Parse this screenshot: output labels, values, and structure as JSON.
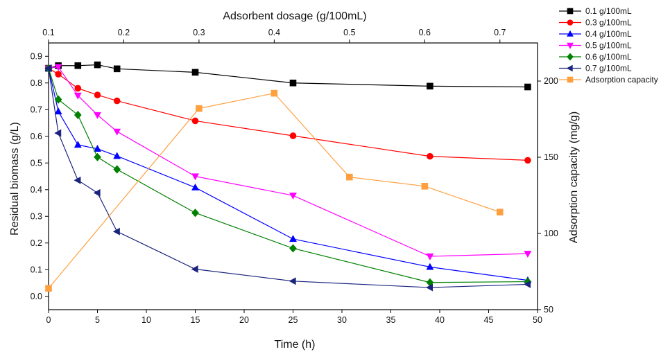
{
  "chart_data": {
    "type": "line",
    "x_bottom": {
      "label": "Time (h)",
      "range": [
        0,
        50
      ],
      "ticks": [
        0,
        5,
        10,
        15,
        20,
        25,
        30,
        35,
        40,
        45,
        50
      ],
      "tick_labels": [
        "0",
        "5",
        "10",
        "15",
        "20",
        "25",
        "30",
        "35",
        "40",
        "45",
        "50"
      ]
    },
    "x_top": {
      "label": "Adsorbent dosage (g/100mL)",
      "range": [
        0.1,
        0.75
      ],
      "ticks": [
        0.1,
        0.2,
        0.3,
        0.4,
        0.5,
        0.6,
        0.7
      ],
      "tick_labels": [
        "0.1",
        "0.2",
        "0.3",
        "0.4",
        "0.5",
        "0.6",
        "0.7"
      ]
    },
    "y_left": {
      "label": "Residual biomass (g/L)",
      "range": [
        -0.05,
        0.95
      ],
      "ticks": [
        0.0,
        0.1,
        0.2,
        0.3,
        0.4,
        0.5,
        0.6,
        0.7,
        0.8,
        0.9
      ],
      "tick_labels": [
        "0.0",
        "0.1",
        "0.2",
        "0.3",
        "0.4",
        "0.5",
        "0.6",
        "0.7",
        "0.8",
        "0.9"
      ]
    },
    "y_right": {
      "label": "Adsorption capacity (mg/g)",
      "range": [
        50,
        225
      ],
      "ticks": [
        50,
        100,
        150,
        200
      ],
      "tick_labels": [
        "50",
        "100",
        "150",
        "200"
      ]
    },
    "legend_position": "outside-top-right",
    "series": [
      {
        "name": "0.1 g/100mL",
        "color": "#000000",
        "marker": "square",
        "axis": "bottom-left",
        "x": [
          0,
          1,
          3,
          5,
          7,
          15,
          25,
          39,
          49
        ],
        "y": [
          0.855,
          0.865,
          0.865,
          0.868,
          0.853,
          0.84,
          0.8,
          0.788,
          0.785
        ]
      },
      {
        "name": "0.3 g/100mL",
        "color": "#ff0000",
        "marker": "circle",
        "axis": "bottom-left",
        "x": [
          0,
          1,
          3,
          5,
          7,
          15,
          25,
          39,
          49
        ],
        "y": [
          0.855,
          0.833,
          0.78,
          0.755,
          0.733,
          0.658,
          0.602,
          0.525,
          0.51
        ]
      },
      {
        "name": "0.4 g/100mL",
        "color": "#0000ff",
        "marker": "triangle-up",
        "axis": "bottom-left",
        "x": [
          0,
          1,
          3,
          5,
          7,
          15,
          25,
          39,
          49
        ],
        "y": [
          0.855,
          0.693,
          0.568,
          0.553,
          0.526,
          0.408,
          0.215,
          0.11,
          0.06
        ]
      },
      {
        "name": "0.5 g/100mL",
        "color": "#ff00ff",
        "marker": "triangle-down",
        "axis": "bottom-left",
        "x": [
          0,
          1,
          3,
          5,
          7,
          15,
          25,
          39,
          49
        ],
        "y": [
          0.855,
          0.86,
          0.753,
          0.68,
          0.618,
          0.45,
          0.378,
          0.15,
          0.16
        ]
      },
      {
        "name": "0.6 g/100mL",
        "color": "#008000",
        "marker": "diamond",
        "axis": "bottom-left",
        "x": [
          0,
          1,
          3,
          5,
          7,
          15,
          25,
          39,
          49
        ],
        "y": [
          0.855,
          0.738,
          0.68,
          0.522,
          0.476,
          0.313,
          0.18,
          0.052,
          0.055
        ]
      },
      {
        "name": "0.7 g/100mL",
        "color": "#1a237e",
        "marker": "triangle-left",
        "axis": "bottom-left",
        "x": [
          0,
          1,
          3,
          5,
          7,
          15,
          25,
          39,
          49
        ],
        "y": [
          0.855,
          0.612,
          0.435,
          0.388,
          0.243,
          0.102,
          0.057,
          0.033,
          0.045
        ]
      },
      {
        "name": "Adsorption capacity",
        "color": "#ffa040",
        "marker": "square",
        "axis": "top-right",
        "x": [
          0.1,
          0.3,
          0.4,
          0.5,
          0.6,
          0.7
        ],
        "y": [
          64,
          182,
          192,
          137,
          131,
          114
        ]
      }
    ]
  }
}
